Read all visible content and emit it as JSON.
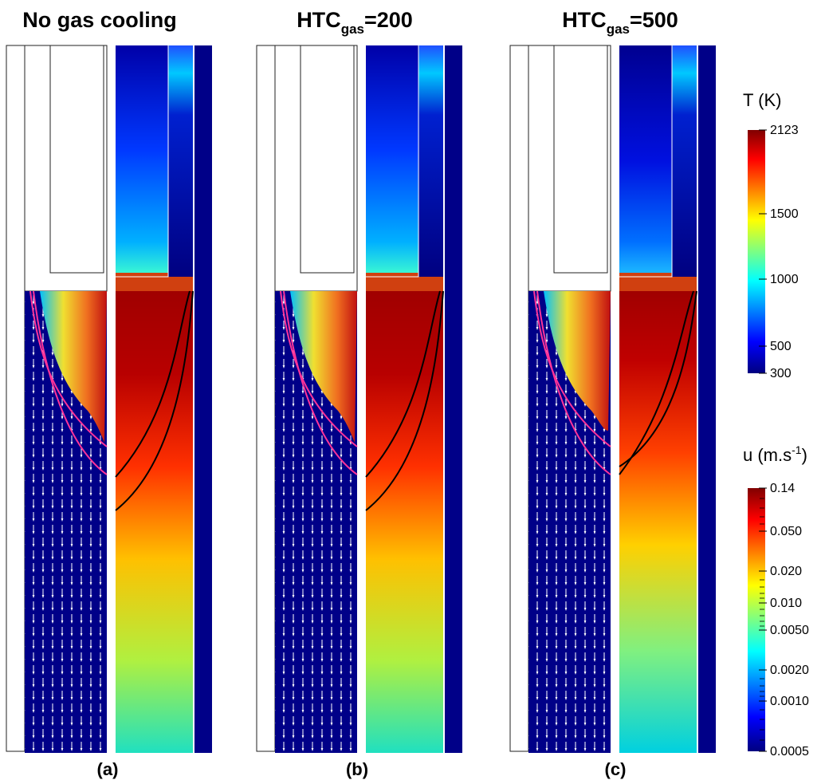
{
  "panels": [
    {
      "title_main": "No gas cooling",
      "title_sub": "",
      "title_tail": "",
      "label": "(a)"
    },
    {
      "title_main": "HTC",
      "title_sub": "gas",
      "title_tail": "=200",
      "label": "(b)"
    },
    {
      "title_main": "HTC",
      "title_sub": "gas",
      "title_tail": "=500",
      "label": "(c)"
    }
  ],
  "colorbars": {
    "temperature": {
      "title_main": "T (K)",
      "ticks": [
        "2123",
        "1500",
        "1000",
        "500",
        "300"
      ]
    },
    "velocity": {
      "title_main": "u (m.s",
      "title_sup": "-1",
      "title_tail": ")",
      "ticks": [
        "0.14",
        "0.050",
        "0.020",
        "0.010",
        "0.0050",
        "0.0020",
        "0.0010",
        "0.0005"
      ]
    }
  },
  "colors": {
    "jet_dark_red": "#800000",
    "jet_red": "#ff0000",
    "jet_yellow": "#ffff00",
    "jet_cyan": "#00ffff",
    "jet_blue": "#0000ff",
    "jet_dark_blue": "#000080",
    "solidus_line": "#ff3399",
    "liquidus_line": "#000000"
  }
}
